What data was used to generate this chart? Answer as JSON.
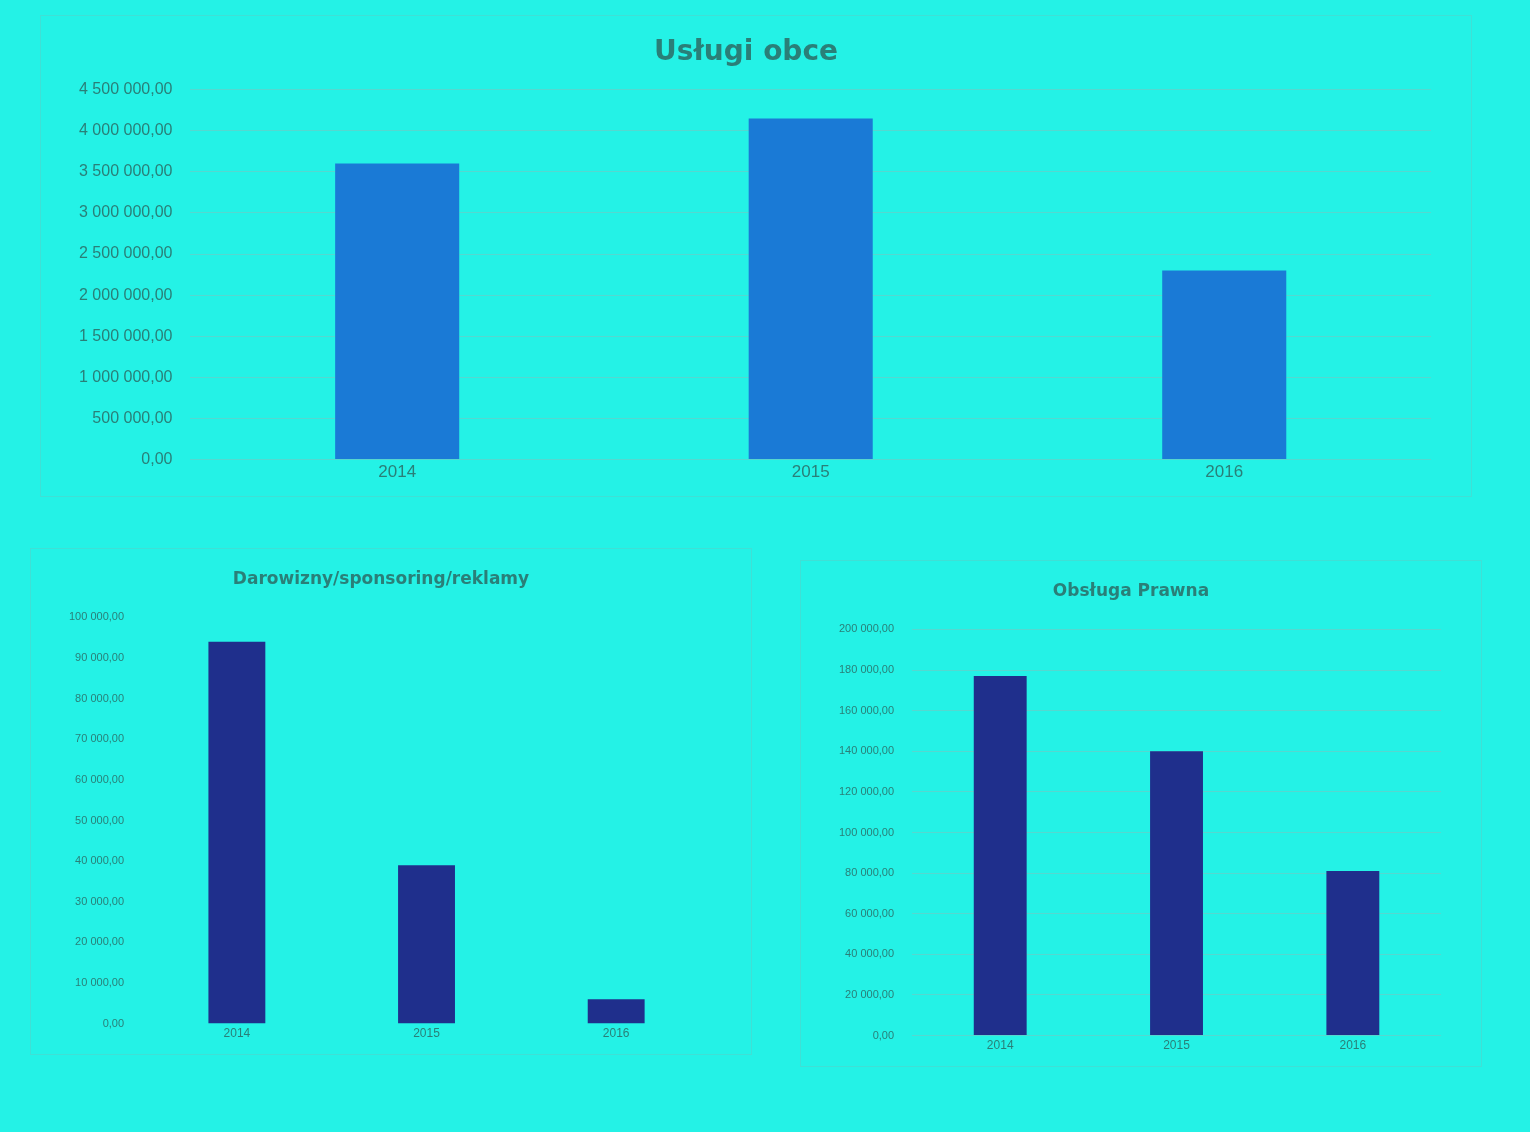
{
  "chart_data": [
    {
      "type": "bar",
      "title": "Usługi obce",
      "categories": [
        "2014",
        "2015",
        "2016"
      ],
      "values": [
        3600000,
        4150000,
        2300000
      ],
      "color": "#1a7ad6",
      "ylim": [
        0,
        4500000
      ],
      "yticks": [
        {
          "value": 0,
          "label": "0,00"
        },
        {
          "value": 500000,
          "label": "500 000,00"
        },
        {
          "value": 1000000,
          "label": "1 000 000,00"
        },
        {
          "value": 1500000,
          "label": "1 500 000,00"
        },
        {
          "value": 2000000,
          "label": "2 000 000,00"
        },
        {
          "value": 2500000,
          "label": "2 500 000,00"
        },
        {
          "value": 3000000,
          "label": "3 000 000,00"
        },
        {
          "value": 3500000,
          "label": "3 500 000,00"
        },
        {
          "value": 4000000,
          "label": "4 000 000,00"
        },
        {
          "value": 4500000,
          "label": "4 500 000,00"
        }
      ],
      "grid": "y"
    },
    {
      "type": "bar",
      "title": "Darowizny/sponsoring/reklamy",
      "categories": [
        "2014",
        "2015",
        "2016"
      ],
      "values": [
        94000,
        39000,
        6000
      ],
      "color": "#1f2f8c",
      "ylim": [
        0,
        100000
      ],
      "yticks": [
        {
          "value": 0,
          "label": "0,00"
        },
        {
          "value": 10000,
          "label": "10 000,00"
        },
        {
          "value": 20000,
          "label": "20 000,00"
        },
        {
          "value": 30000,
          "label": "30 000,00"
        },
        {
          "value": 40000,
          "label": "40 000,00"
        },
        {
          "value": 50000,
          "label": "50 000,00"
        },
        {
          "value": 60000,
          "label": "60 000,00"
        },
        {
          "value": 70000,
          "label": "70 000,00"
        },
        {
          "value": 80000,
          "label": "80 000,00"
        },
        {
          "value": 90000,
          "label": "90 000,00"
        },
        {
          "value": 100000,
          "label": "100 000,00"
        }
      ]
    },
    {
      "type": "bar",
      "title": "Obsługa Prawna",
      "categories": [
        "2014",
        "2015",
        "2016"
      ],
      "values": [
        177000,
        140000,
        81000
      ],
      "color": "#1f2f8c",
      "ylim": [
        0,
        200000
      ],
      "yticks": [
        {
          "value": 0,
          "label": "0,00"
        },
        {
          "value": 20000,
          "label": "20 000,00"
        },
        {
          "value": 40000,
          "label": "40 000,00"
        },
        {
          "value": 60000,
          "label": "60 000,00"
        },
        {
          "value": 80000,
          "label": "80 000,00"
        },
        {
          "value": 100000,
          "label": "100 000,00"
        },
        {
          "value": 120000,
          "label": "120 000,00"
        },
        {
          "value": 140000,
          "label": "140 000,00"
        },
        {
          "value": 160000,
          "label": "160 000,00"
        },
        {
          "value": 180000,
          "label": "180 000,00"
        },
        {
          "value": 200000,
          "label": "200 000,00"
        }
      ],
      "grid": "y"
    }
  ]
}
